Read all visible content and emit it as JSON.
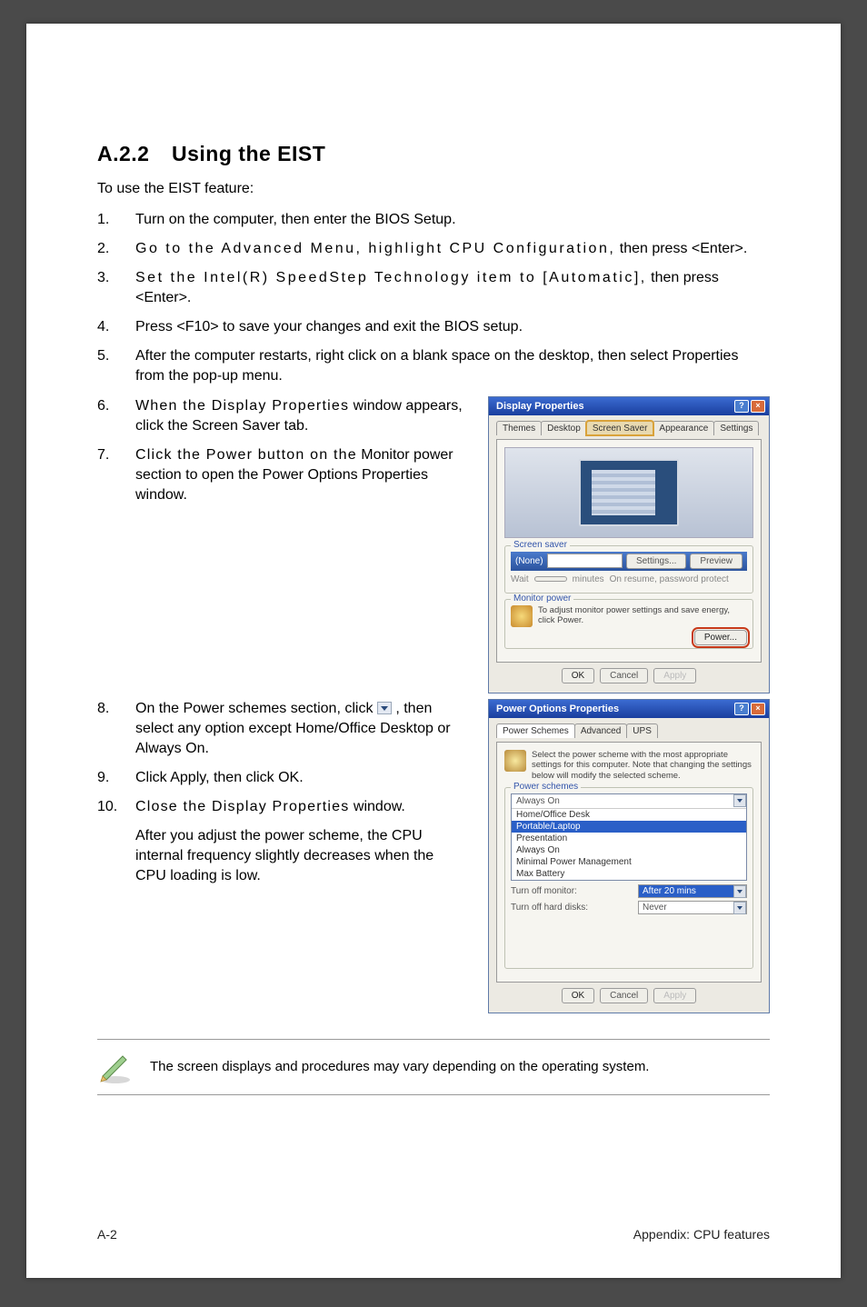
{
  "section": {
    "number": "A.2.2",
    "title": "Using the EIST"
  },
  "intro": "To use the EIST feature:",
  "steps": [
    {
      "n": "1.",
      "html": "Turn on the computer, then enter the BIOS Setup."
    },
    {
      "n": "2.",
      "html": "<span class='wide'>Go to the Advanced Menu, highlight CPU Configuration,</span> then press <Enter>."
    },
    {
      "n": "3.",
      "html": "<span class='wide'>Set the Intel(R) SpeedStep Technology item to [Automatic],</span> then press <Enter>."
    },
    {
      "n": "4.",
      "html": "Press <F10> to save your changes and exit the BIOS setup."
    },
    {
      "n": "5.",
      "html": "After the computer restarts, right click on a blank space on the desktop, then select Properties from the pop-up menu."
    },
    {
      "n": "6.",
      "html": "<span class='wide2'>When the Display Properties</span> window appears, click the Screen Saver tab."
    },
    {
      "n": "7.",
      "html": "<span class='wide2'>Click the Power button on the</span> Monitor power section to open the Power Options Properties window."
    },
    {
      "n": "8.",
      "html": "On the Power schemes section, click <span class='dropdown-arrow' data-name='dropdown-arrow-icon' data-interactable='false'></span> , then select any option except Home/Office Desktop or Always On."
    },
    {
      "n": "9.",
      "html": "Click Apply, then click OK."
    },
    {
      "n": "10.",
      "html": "<span class='wide2'>Close the Display Properties</span> window."
    }
  ],
  "after_text": "After you adjust the power scheme, the CPU internal frequency slightly decreases when the CPU loading is low.",
  "note": "The screen displays and procedures may vary depending on the operating system.",
  "footer": {
    "left": "A-2",
    "right": "Appendix: CPU features"
  },
  "dialog1": {
    "title": "Display Properties",
    "tabs": [
      "Themes",
      "Desktop",
      "Screen Saver",
      "Appearance",
      "Settings"
    ],
    "active_tab": 2,
    "section1_legend": "Screen saver",
    "section1_label": "(None)",
    "btn_settings": "Settings...",
    "btn_preview": "Preview",
    "wait_label": "Wait",
    "wait_min": "minutes",
    "resume_label": "On resume, password protect",
    "section2_legend": "Monitor power",
    "section2_text": "To adjust monitor power settings and save energy, click Power.",
    "power_btn": "Power...",
    "ok": "OK",
    "cancel": "Cancel",
    "apply": "Apply"
  },
  "dialog2": {
    "title": "Power Options Properties",
    "tabs": [
      "Power Schemes",
      "Advanced",
      "UPS"
    ],
    "active_tab": 0,
    "info": "Select the power scheme with the most appropriate settings for this computer. Note that changing the settings below will modify the selected scheme.",
    "section1_legend": "Power schemes",
    "selected_scheme": "Always On",
    "scheme_options": [
      "Home/Office Desk",
      "Portable/Laptop",
      "Presentation",
      "Always On",
      "Minimal Power Management",
      "Max Battery"
    ],
    "highlight_index": 1,
    "turnoff_monitor_label": "Turn off monitor:",
    "turnoff_monitor_val": "After 20 mins",
    "turnoff_hd_label": "Turn off hard disks:",
    "turnoff_hd_val": "Never",
    "ok": "OK",
    "cancel": "Cancel",
    "apply": "Apply"
  }
}
